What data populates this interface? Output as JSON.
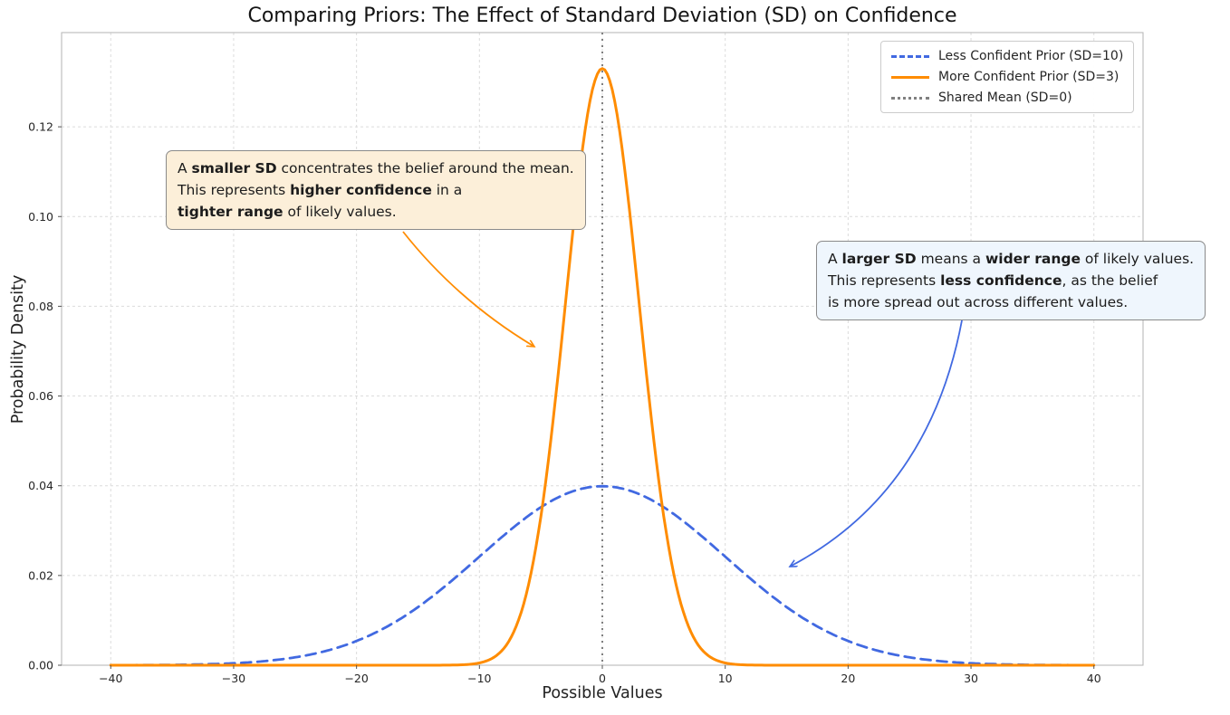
{
  "chart_data": {
    "type": "line",
    "title": "Comparing Priors: The Effect of Standard Deviation (SD) on Confidence",
    "xlabel": "Possible Values",
    "ylabel": "Probability Density",
    "xlim": [
      -44,
      44
    ],
    "ylim": [
      0,
      0.141
    ],
    "grid": true,
    "legend_position": "upper right",
    "x_ticks": [
      -40,
      -30,
      -20,
      -10,
      0,
      10,
      20,
      30,
      40
    ],
    "x_tick_labels": [
      "−40",
      "−30",
      "−20",
      "−10",
      "0",
      "10",
      "20",
      "30",
      "40"
    ],
    "y_ticks": [
      0,
      0.02,
      0.04,
      0.06,
      0.08,
      0.1,
      0.12
    ],
    "y_tick_labels": [
      "0.00",
      "0.02",
      "0.04",
      "0.06",
      "0.08",
      "0.10",
      "0.12"
    ],
    "series": [
      {
        "name": "Less Confident Prior (SD=10)",
        "distribution": "normal",
        "mean": 0,
        "sd": 10,
        "x_range": [
          -40,
          40
        ],
        "peak_density": 0.04,
        "color": "#4169E1",
        "line_style": "dashed",
        "line_width": 2.8
      },
      {
        "name": "More Confident Prior (SD=3)",
        "distribution": "normal",
        "mean": 0,
        "sd": 3,
        "x_range": [
          -40,
          40
        ],
        "peak_density": 0.133,
        "color": "#FF8C00",
        "line_style": "solid",
        "line_width": 3
      }
    ],
    "vline": {
      "name": "Shared Mean (SD=0)",
      "x": 0,
      "color": "#808080",
      "line_style": "dotted",
      "line_width": 2
    }
  },
  "legend": {
    "items": [
      {
        "label": "Less Confident Prior (SD=10)",
        "color": "#4169E1",
        "style": "dashed"
      },
      {
        "label": "More Confident Prior (SD=3)",
        "color": "#FF8C00",
        "style": "solid"
      },
      {
        "label": "Shared Mean (SD=0)",
        "color": "#808080",
        "style": "dotted"
      }
    ]
  },
  "annotations": {
    "smaller_sd": {
      "box_color": "#FCEFD9",
      "border_color": "#8a8a8a",
      "arrow_color": "#FF8C00",
      "lines": [
        [
          {
            "t": "A ",
            "b": false
          },
          {
            "t": "smaller SD",
            "b": true
          },
          {
            "t": " concentrates the belief around the mean.",
            "b": false
          }
        ],
        [
          {
            "t": "This represents ",
            "b": false
          },
          {
            "t": "higher confidence",
            "b": true
          },
          {
            "t": " in a",
            "b": false
          }
        ],
        [
          {
            "t": "tighter range",
            "b": true
          },
          {
            "t": " of likely values.",
            "b": false
          }
        ]
      ]
    },
    "larger_sd": {
      "box_color": "#EFF6FD",
      "border_color": "#8a8a8a",
      "arrow_color": "#4169E1",
      "lines": [
        [
          {
            "t": "A ",
            "b": false
          },
          {
            "t": "larger SD",
            "b": true
          },
          {
            "t": " means a ",
            "b": false
          },
          {
            "t": "wider range",
            "b": true
          },
          {
            "t": " of likely values.",
            "b": false
          }
        ],
        [
          {
            "t": "This represents ",
            "b": false
          },
          {
            "t": "less confidence",
            "b": true
          },
          {
            "t": ", as the belief",
            "b": false
          }
        ],
        [
          {
            "t": "is more spread out across different values.",
            "b": false
          }
        ]
      ]
    }
  }
}
